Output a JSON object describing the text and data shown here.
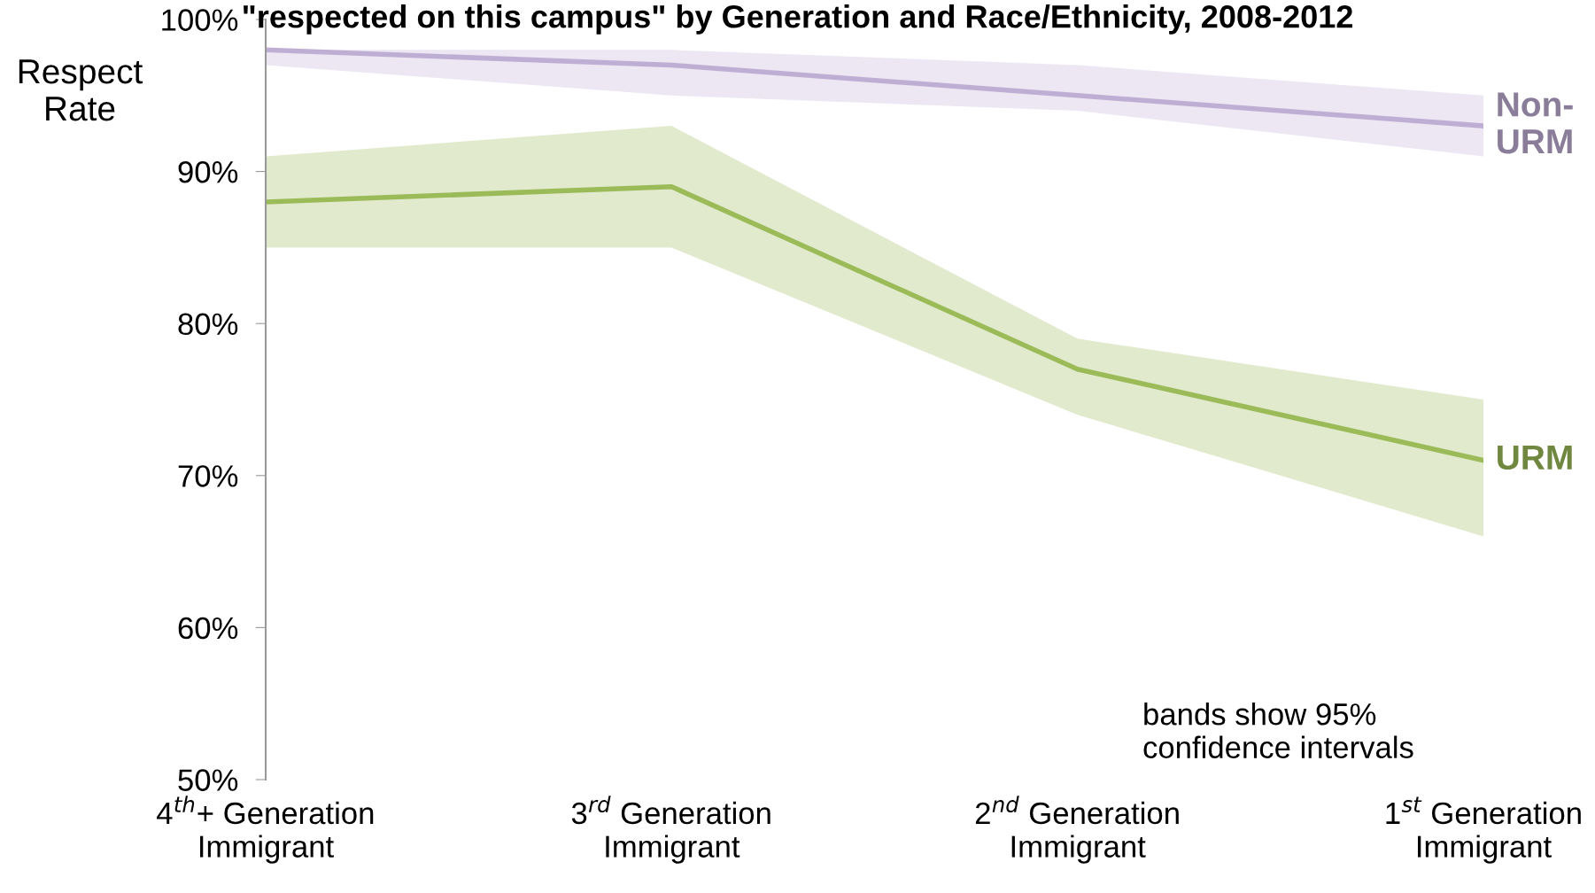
{
  "chart_data": {
    "type": "line",
    "title": "\"respected on this campus\" by Generation and Race/Ethnicity, 2008-2012",
    "ylabel": "Respect\nRate",
    "categories": [
      "4$^{th}$+ Generation\nImmigrant",
      "3$^{rd}$ Generation\nImmigrant",
      "2$^{nd}$ Generation\nImmigrant",
      "1$^{st}$ Generation\nImmigrant"
    ],
    "series": [
      {
        "name": "Non-\nURM",
        "color": "#bfaed4",
        "values": [
          98,
          97,
          95,
          93
        ],
        "lower": [
          97,
          95,
          94,
          91
        ],
        "upper": [
          98,
          98,
          97,
          95
        ]
      },
      {
        "name": "URM",
        "color": "#9bbb59",
        "values": [
          88,
          89,
          77,
          71
        ],
        "lower": [
          85,
          85,
          74,
          66
        ],
        "upper": [
          91,
          93,
          79,
          75
        ]
      }
    ],
    "ylim": [
      50,
      100
    ],
    "yticks": [
      {
        "value": 50,
        "label": "50%"
      },
      {
        "value": 60,
        "label": "60%"
      },
      {
        "value": 70,
        "label": "70%"
      },
      {
        "value": 80,
        "label": "80%"
      },
      {
        "value": 90,
        "label": "90%"
      },
      {
        "value": 100,
        "label": "100%"
      }
    ],
    "annotations": [
      "bands show 95%\nconfidence intervals"
    ],
    "grid": false,
    "legend": false,
    "marker": "none",
    "line_style": "solid"
  }
}
